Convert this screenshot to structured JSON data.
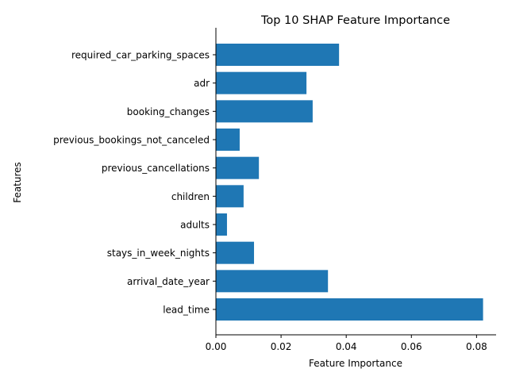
{
  "chart_data": {
    "type": "bar",
    "orientation": "horizontal",
    "title": "Top 10 SHAP Feature Importance",
    "xlabel": "Feature Importance",
    "ylabel": "Features",
    "categories": [
      "required_car_parking_spaces",
      "adr",
      "booking_changes",
      "previous_bookings_not_canceled",
      "previous_cancellations",
      "children",
      "adults",
      "stays_in_week_nights",
      "arrival_date_year",
      "lead_time"
    ],
    "values": [
      0.0378,
      0.0278,
      0.0297,
      0.0073,
      0.0132,
      0.0085,
      0.0034,
      0.0117,
      0.0344,
      0.082
    ],
    "xlim": [
      0,
      0.086
    ],
    "xticks": [
      0.0,
      0.02,
      0.04,
      0.06,
      0.08
    ],
    "xtick_labels": [
      "0.00",
      "0.02",
      "0.04",
      "0.06",
      "0.08"
    ],
    "bar_color": "#1f77b4",
    "grid": false,
    "legend": false
  }
}
